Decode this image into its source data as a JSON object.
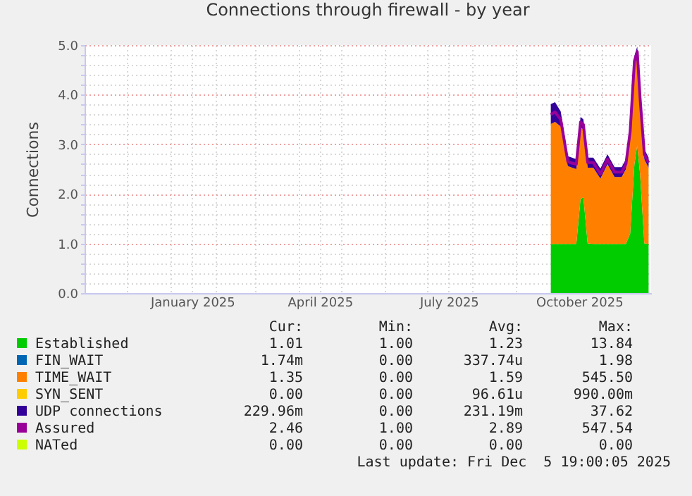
{
  "chart_data": {
    "type": "area",
    "title": "Connections through firewall - by year",
    "ylabel": "Connections",
    "stacked": true,
    "grid": true,
    "legend": "bottom",
    "marker": "none",
    "x": [
      "2025-09-26",
      "2025-09-29",
      "2025-10-03",
      "2025-10-08",
      "2025-10-11",
      "2025-10-14",
      "2025-10-17",
      "2025-10-19",
      "2025-10-22",
      "2025-10-26",
      "2025-10-31",
      "2025-11-05",
      "2025-11-10",
      "2025-11-15",
      "2025-11-18",
      "2025-11-21",
      "2025-11-24",
      "2025-11-26",
      "2025-11-28",
      "2025-12-01",
      "2025-12-04"
    ],
    "xlim": [
      "2024-11-01",
      "2025-12-05T19:00"
    ],
    "xticks": [
      {
        "value": "2024-12-01",
        "label": null
      },
      {
        "value": "2025-01-01",
        "label": null
      },
      {
        "value": "2025-01-16",
        "label": "January 2025"
      },
      {
        "value": "2025-02-01",
        "label": null
      },
      {
        "value": "2025-03-01",
        "label": null
      },
      {
        "value": "2025-04-01",
        "label": null
      },
      {
        "value": "2025-04-16",
        "label": "April 2025"
      },
      {
        "value": "2025-05-01",
        "label": null
      },
      {
        "value": "2025-06-01",
        "label": null
      },
      {
        "value": "2025-07-01",
        "label": null
      },
      {
        "value": "2025-07-16",
        "label": "July 2025"
      },
      {
        "value": "2025-08-01",
        "label": null
      },
      {
        "value": "2025-09-01",
        "label": null
      },
      {
        "value": "2025-10-01",
        "label": null
      },
      {
        "value": "2025-10-16",
        "label": "October 2025"
      },
      {
        "value": "2025-11-01",
        "label": null
      },
      {
        "value": "2025-12-01",
        "label": null
      }
    ],
    "ylim": [
      0,
      5
    ],
    "yticks": [
      {
        "value": 0,
        "label": "0.0"
      },
      {
        "value": 0.2,
        "label": null
      },
      {
        "value": 0.4,
        "label": null
      },
      {
        "value": 0.6,
        "label": null
      },
      {
        "value": 0.8,
        "label": null
      },
      {
        "value": 1,
        "label": "1.0"
      },
      {
        "value": 1.2,
        "label": null
      },
      {
        "value": 1.4,
        "label": null
      },
      {
        "value": 1.6,
        "label": null
      },
      {
        "value": 1.8,
        "label": null
      },
      {
        "value": 2,
        "label": "2.0"
      },
      {
        "value": 2.2,
        "label": null
      },
      {
        "value": 2.4,
        "label": null
      },
      {
        "value": 2.6,
        "label": null
      },
      {
        "value": 2.8,
        "label": null
      },
      {
        "value": 3,
        "label": "3.0"
      },
      {
        "value": 3.2,
        "label": null
      },
      {
        "value": 3.4,
        "label": null
      },
      {
        "value": 3.6,
        "label": null
      },
      {
        "value": 3.8,
        "label": null
      },
      {
        "value": 4,
        "label": "4.0"
      },
      {
        "value": 4.2,
        "label": null
      },
      {
        "value": 4.4,
        "label": null
      },
      {
        "value": 4.6,
        "label": null
      },
      {
        "value": 4.8,
        "label": null
      },
      {
        "value": 5,
        "label": "5.0"
      }
    ],
    "series": [
      {
        "name": "Established",
        "color": "#00cc00",
        "values": [
          0.99,
          0.99,
          0.99,
          0.99,
          0.99,
          0.99,
          1.9,
          1.93,
          1.0,
          0.99,
          0.99,
          0.99,
          0.99,
          0.99,
          0.99,
          1.2,
          2.6,
          2.98,
          2.4,
          1.0,
          0.99
        ]
      },
      {
        "name": "FIN_WAIT",
        "color": "#0066b3",
        "values": [
          null,
          null,
          null,
          null,
          null,
          null,
          null,
          null,
          null,
          null,
          null,
          null,
          null,
          null,
          null,
          null,
          null,
          null,
          null,
          null,
          null
        ]
      },
      {
        "name": "TIME_WAIT",
        "color": "#ff8000",
        "values": [
          2.42,
          2.46,
          2.37,
          1.57,
          1.54,
          1.51,
          1.45,
          1.37,
          1.53,
          1.54,
          1.32,
          1.61,
          1.35,
          1.35,
          1.51,
          1.96,
          1.98,
          1.79,
          1.43,
          1.7,
          1.54
        ]
      },
      {
        "name": "SYN_SENT",
        "color": "#ffcc00",
        "values": [
          null,
          null,
          null,
          null,
          null,
          null,
          null,
          null,
          null,
          null,
          null,
          null,
          null,
          null,
          null,
          null,
          null,
          null,
          null,
          null,
          null
        ]
      },
      {
        "name": "UDP connections",
        "color": "#330099",
        "values": [
          0.4,
          0.4,
          0.3,
          0.2,
          0.2,
          0.2,
          0.2,
          0.2,
          0.2,
          0.2,
          0.2,
          0.2,
          0.2,
          0.2,
          0.2,
          0.2,
          0.2,
          0.2,
          0.2,
          0.2,
          0.2
        ]
      },
      {
        "name": "Assured",
        "type": "line",
        "color": "#990099",
        "values": [
          3.6,
          3.65,
          3.5,
          2.65,
          2.62,
          2.6,
          3.45,
          3.4,
          2.63,
          2.63,
          2.4,
          2.7,
          2.44,
          2.44,
          2.6,
          3.26,
          4.68,
          4.87,
          3.93,
          2.8,
          2.63
        ]
      },
      {
        "name": "NATed",
        "color": "#ccff00",
        "values": [
          null,
          null,
          null,
          null,
          null,
          null,
          null,
          null,
          null,
          null,
          null,
          null,
          null,
          null,
          null,
          null,
          null,
          null,
          null,
          null,
          null
        ]
      }
    ],
    "annotations": [
      "Cur:",
      "Min:",
      "Avg:",
      "Max:",
      "1.01",
      "1.00",
      "1.23",
      "13.84",
      "1.74m",
      "0.00",
      "337.74u",
      "1.98",
      "1.35",
      "0.00",
      "1.59",
      "545.50",
      "0.00",
      "0.00",
      "96.61u",
      "990.00m",
      "229.96m",
      "0.00",
      "231.19m",
      "37.62",
      "2.46",
      "1.00",
      "2.89",
      "547.54",
      "0.00",
      "0.00",
      "0.00",
      "0.00",
      "Last update: Fri Dec  5 19:00:05 2025"
    ]
  }
}
